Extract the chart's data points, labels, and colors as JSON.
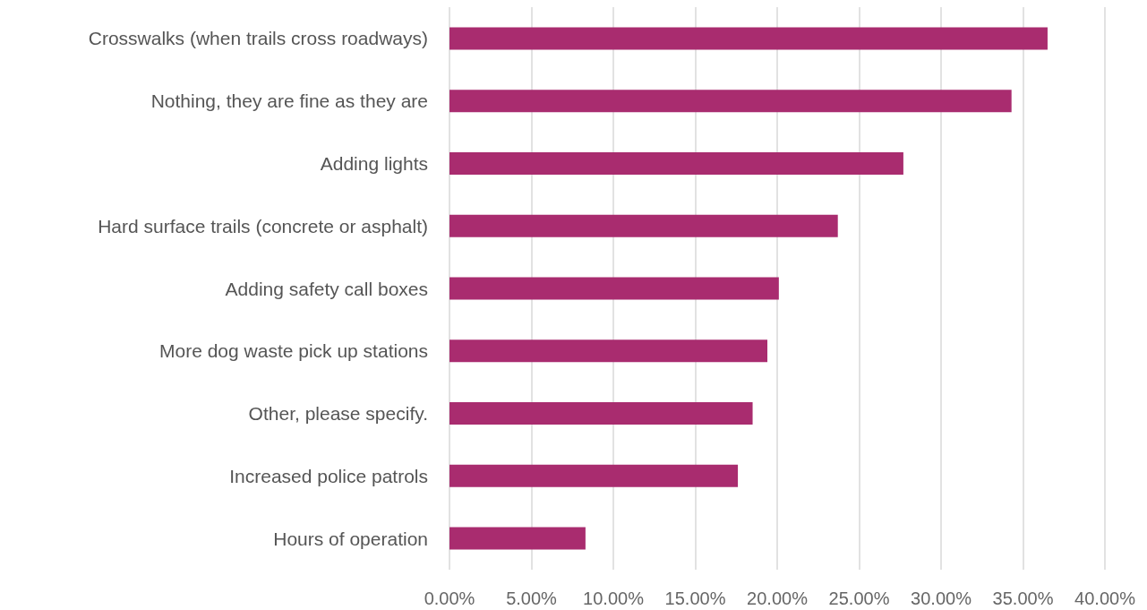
{
  "chart_data": {
    "type": "bar",
    "orientation": "horizontal",
    "categories": [
      "Crosswalks (when trails cross roadways)",
      "Nothing, they are fine as they are",
      "Adding lights",
      "Hard surface trails (concrete or asphalt)",
      "Adding safety call boxes",
      "More dog waste pick up stations",
      "Other, please specify.",
      "Increased police patrols",
      "Hours of operation"
    ],
    "values": [
      36.5,
      34.3,
      27.7,
      23.7,
      20.1,
      19.4,
      18.5,
      17.6,
      8.3
    ],
    "color": "#a92c6f",
    "xlim": [
      0,
      40
    ],
    "xticks": [
      {
        "value": 0,
        "label": "0.00%"
      },
      {
        "value": 5,
        "label": "5.00%"
      },
      {
        "value": 10,
        "label": "10.00%"
      },
      {
        "value": 15,
        "label": "15.00%"
      },
      {
        "value": 20,
        "label": "20.00%"
      },
      {
        "value": 25,
        "label": "25.00%"
      },
      {
        "value": 30,
        "label": "30.00%"
      },
      {
        "value": 35,
        "label": "35.00%"
      },
      {
        "value": 40,
        "label": "40.00%"
      }
    ],
    "grid": "x"
  }
}
